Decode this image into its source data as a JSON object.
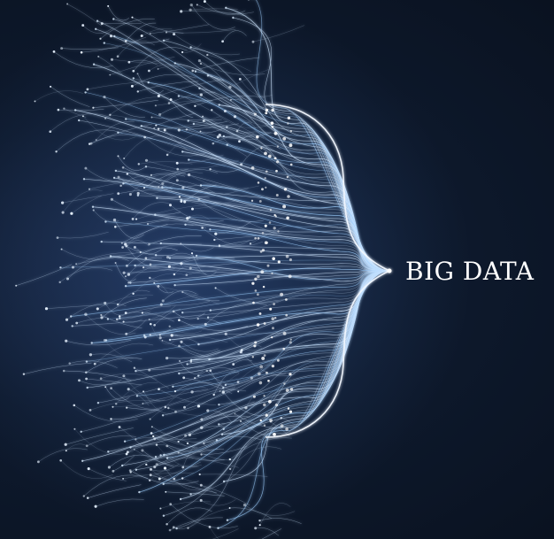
{
  "headline": "BIG DATA",
  "colors": {
    "background": "#0b1422",
    "fiber": "#cfe6ff",
    "glow": "#9fd0ff",
    "text": "#ffffff"
  },
  "artwork": "data-fibers-converging-into-brace"
}
